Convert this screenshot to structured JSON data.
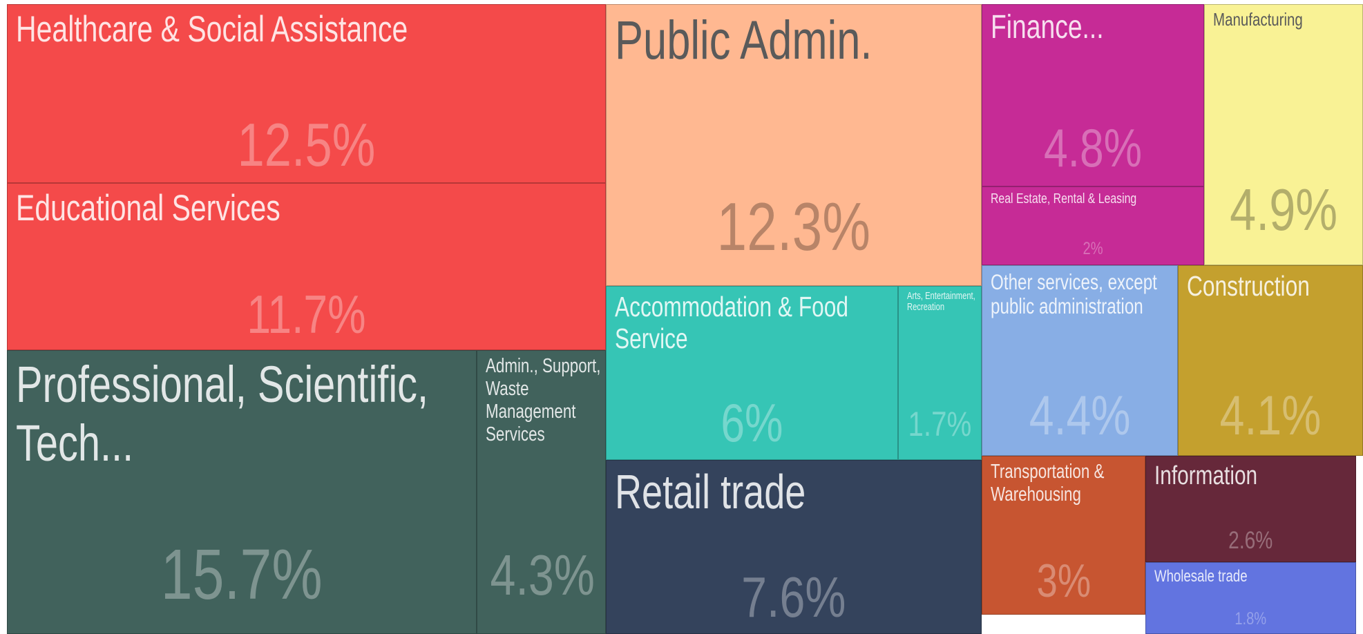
{
  "chart_data": {
    "type": "treemap",
    "categories": [
      "Healthcare & Social Assistance",
      "Educational Services",
      "Professional, Scientific, Tech...",
      "Admin., Support, Waste Management Services",
      "Public Admin.",
      "Accommodation & Food Service",
      "Arts, Entertainment, Recreation",
      "Retail trade",
      "Finance...",
      "Real Estate, Rental & Leasing",
      "Manufacturing",
      "Other services, except public administration",
      "Construction",
      "Transportation & Warehousing",
      "Information",
      "Wholesale trade"
    ],
    "values": [
      12.5,
      11.7,
      15.7,
      4.3,
      12.3,
      6,
      1.7,
      7.6,
      4.8,
      2,
      4.9,
      4.4,
      4.1,
      3,
      2.6,
      1.8
    ],
    "value_labels": [
      "12.5%",
      "11.7%",
      "15.7%",
      "4.3%",
      "12.3%",
      "6%",
      "1.7%",
      "7.6%",
      "4.8%",
      "2%",
      "4.9%",
      "4.4%",
      "4.1%",
      "3%",
      "2.6%",
      "1.8%"
    ],
    "colors": [
      "#f44a4a",
      "#f44a4a",
      "#41625c",
      "#41625c",
      "#ffb891",
      "#36c5b5",
      "#36c5b5",
      "#34435c",
      "#c62b96",
      "#c62b96",
      "#f9f295",
      "#88aee5",
      "#c4a02e",
      "#c75531",
      "#66283a",
      "#6274e0"
    ]
  }
}
